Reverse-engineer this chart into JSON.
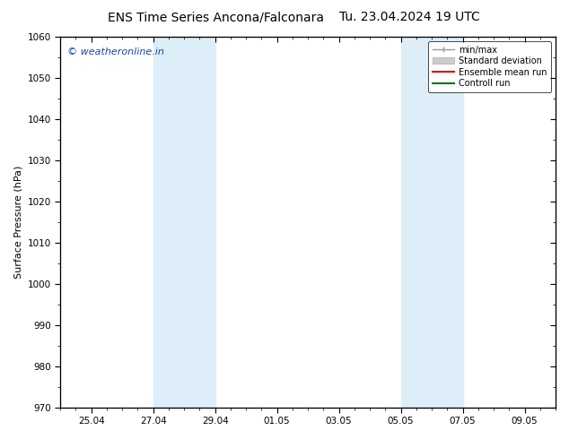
{
  "title_left": "ENS Time Series Ancona/Falconara",
  "title_right": "Tu. 23.04.2024 19 UTC",
  "ylabel": "Surface Pressure (hPa)",
  "ylim": [
    970,
    1060
  ],
  "yticks": [
    970,
    980,
    990,
    1000,
    1010,
    1020,
    1030,
    1040,
    1050,
    1060
  ],
  "xtick_labels": [
    "25.04",
    "27.04",
    "29.04",
    "01.05",
    "03.05",
    "05.05",
    "07.05",
    "09.05"
  ],
  "xtick_positions": [
    1,
    3,
    5,
    7,
    9,
    11,
    13,
    15
  ],
  "shaded_bands": [
    {
      "x_start": 3,
      "x_end": 5
    },
    {
      "x_start": 11,
      "x_end": 13
    }
  ],
  "shaded_color": "#ddeef8",
  "watermark_text": "© weatheronline.in",
  "watermark_color": "#1a44aa",
  "legend_items": [
    {
      "label": "min/max",
      "color": "#999999"
    },
    {
      "label": "Standard deviation",
      "color": "#cccccc"
    },
    {
      "label": "Ensemble mean run",
      "color": "#dd0000"
    },
    {
      "label": "Controll run",
      "color": "#007700"
    }
  ],
  "bg_color": "#ffffff",
  "plot_bg_color": "#ffffff",
  "grid_color": "#dddddd",
  "tick_color": "#000000",
  "x_min": 0,
  "x_max": 16,
  "title_fontsize": 10,
  "axis_label_fontsize": 8,
  "tick_fontsize": 7.5,
  "legend_fontsize": 7
}
